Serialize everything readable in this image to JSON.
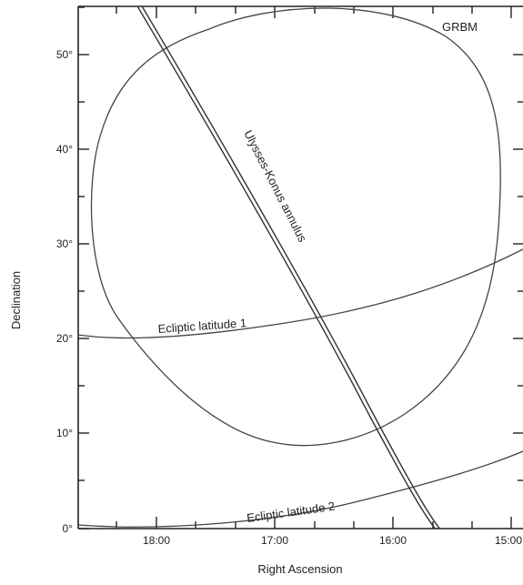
{
  "axes": {
    "x_title": "Right Ascension",
    "y_title": "Declination",
    "x_ticks": [
      "18:00",
      "17:00",
      "16:00",
      "15:00"
    ],
    "y_ticks": [
      "0°",
      "10°",
      "20°",
      "30°",
      "40°",
      "50°"
    ]
  },
  "labels": {
    "grbm": "GRBM",
    "annulus": "Ulysses-Konus annulus",
    "ecliptic1": "Ecliptic latitude 1",
    "ecliptic2": "Ecliptic latitude 2"
  }
}
